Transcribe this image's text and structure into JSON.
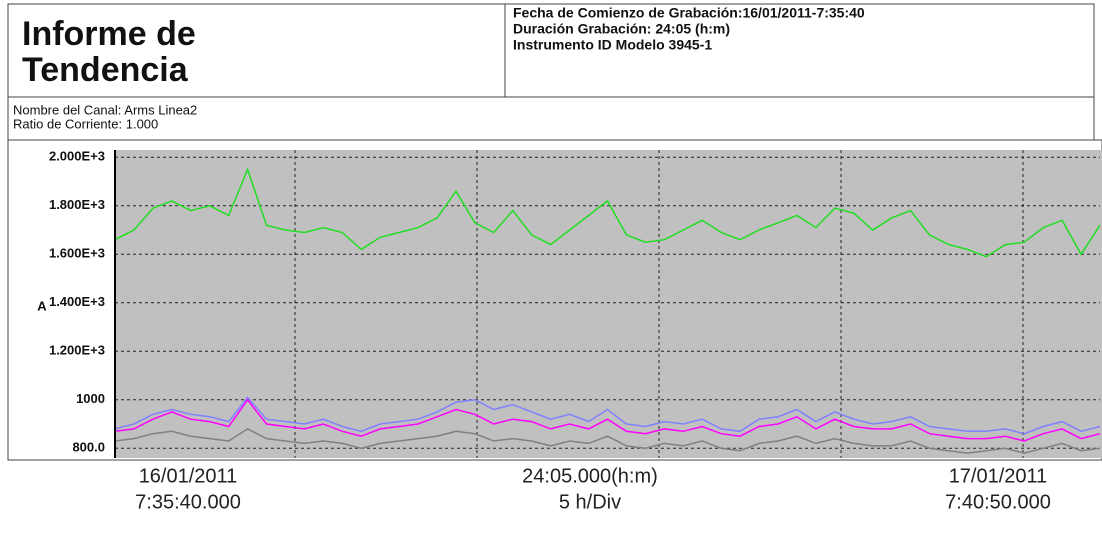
{
  "header": {
    "title": [
      "Informe de",
      "Tendencia"
    ],
    "info": [
      "Fecha de Comienzo de Grabación:16/01/2011-7:35:40",
      "Duración Grabación: 24:05 (h:m)",
      "Instrumento ID Modelo 3945-1"
    ]
  },
  "channel": [
    "Nombre del Canal: Arms Linea2",
    "Ratio de Corriente: 1.000"
  ],
  "chart_data": {
    "type": "line",
    "ylabel": "A",
    "ylim": [
      760,
      2030
    ],
    "grid": true,
    "yticks": [
      {
        "value": 800,
        "label": "800.0"
      },
      1000,
      {
        "value": 1200,
        "label": "1.200E+3"
      },
      {
        "value": 1400,
        "label": "1.400E+3"
      },
      {
        "value": 1600,
        "label": "1.600E+3"
      },
      {
        "value": 1800,
        "label": "1.800E+3"
      },
      {
        "value": 2000,
        "label": "2.000E+3"
      }
    ],
    "x_labels": {
      "start": [
        "16/01/2011",
        "7:35:40.000"
      ],
      "middle": [
        "24:05.000(h:m)",
        "5 h/Div"
      ],
      "end": [
        "17/01/2011",
        "7:40:50.000"
      ]
    },
    "series": [
      {
        "color": "#22dd22",
        "values": [
          1660,
          1700,
          1790,
          1820,
          1780,
          1800,
          1760,
          1950,
          1720,
          1700,
          1690,
          1710,
          1690,
          1620,
          1670,
          1690,
          1710,
          1750,
          1860,
          1730,
          1690,
          1780,
          1680,
          1640,
          1700,
          1760,
          1820,
          1680,
          1650,
          1660,
          1700,
          1740,
          1690,
          1660,
          1700,
          1730,
          1760,
          1710,
          1790,
          1770,
          1700,
          1750,
          1780,
          1680,
          1640,
          1620,
          1590,
          1640,
          1650,
          1710,
          1740,
          1600,
          1720
        ]
      },
      {
        "color": "#8080ff",
        "values": [
          880,
          900,
          940,
          960,
          940,
          930,
          910,
          1010,
          920,
          910,
          900,
          920,
          890,
          870,
          900,
          910,
          920,
          950,
          990,
          1000,
          960,
          980,
          950,
          920,
          940,
          910,
          960,
          900,
          890,
          910,
          900,
          920,
          880,
          870,
          920,
          930,
          960,
          910,
          950,
          920,
          900,
          910,
          930,
          890,
          880,
          870,
          870,
          880,
          860,
          890,
          910,
          870,
          890
        ]
      },
      {
        "color": "#ff00ff",
        "values": [
          870,
          880,
          920,
          950,
          920,
          910,
          890,
          1000,
          900,
          890,
          880,
          900,
          870,
          850,
          880,
          890,
          900,
          930,
          960,
          940,
          900,
          920,
          910,
          880,
          900,
          880,
          920,
          870,
          860,
          880,
          870,
          890,
          860,
          850,
          890,
          900,
          930,
          880,
          920,
          890,
          880,
          880,
          900,
          860,
          850,
          840,
          840,
          850,
          830,
          860,
          880,
          840,
          860
        ]
      },
      {
        "color": "#808080",
        "values": [
          830,
          840,
          860,
          870,
          850,
          840,
          830,
          880,
          840,
          830,
          820,
          830,
          820,
          800,
          820,
          830,
          840,
          850,
          870,
          860,
          830,
          840,
          830,
          810,
          830,
          820,
          850,
          810,
          800,
          820,
          810,
          830,
          800,
          790,
          820,
          830,
          850,
          820,
          840,
          820,
          810,
          810,
          830,
          800,
          790,
          780,
          790,
          800,
          780,
          800,
          820,
          790,
          800
        ]
      }
    ]
  }
}
